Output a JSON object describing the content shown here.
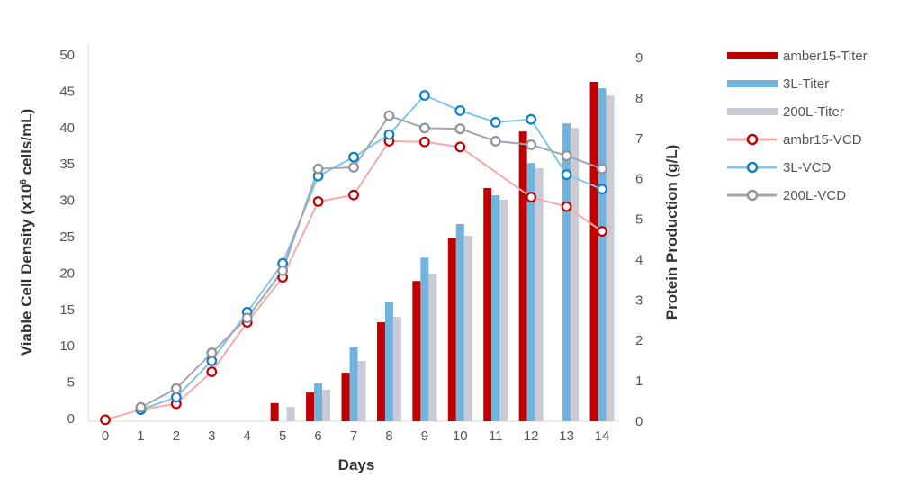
{
  "chart_data": {
    "type": "bar+line",
    "xlabel": "Days",
    "ylabel_left": "Viable Cell Density (x10",
    "ylabel_left_sup": "6",
    "ylabel_left_tail": " cells/mL)",
    "ylabel_right": "Protein Production (g/L)",
    "x": [
      0,
      1,
      2,
      3,
      4,
      5,
      6,
      7,
      8,
      9,
      10,
      11,
      12,
      13,
      14
    ],
    "ylim_left": [
      0,
      50
    ],
    "yticks_left": [
      0,
      5,
      10,
      15,
      20,
      25,
      30,
      35,
      40,
      45,
      50
    ],
    "ylim_right": [
      0,
      9
    ],
    "yticks_right": [
      0,
      1,
      2,
      3,
      4,
      5,
      6,
      7,
      8,
      9
    ],
    "grid": false,
    "legend_position": "right",
    "bar_series": [
      {
        "name": "amber15-Titer",
        "color": "#c00000",
        "values": [
          null,
          null,
          null,
          null,
          null,
          0.45,
          0.71,
          1.2,
          2.45,
          3.47,
          4.54,
          5.77,
          7.17,
          null,
          8.4
        ]
      },
      {
        "name": "3L-Titer",
        "color": "#6fb3de",
        "values": [
          null,
          null,
          null,
          null,
          null,
          null,
          0.94,
          1.83,
          2.94,
          4.05,
          4.88,
          5.59,
          6.39,
          7.37,
          8.24
        ]
      },
      {
        "name": "200L-Titer",
        "color": "#c9ccd4",
        "values": [
          null,
          null,
          null,
          null,
          null,
          0.36,
          0.78,
          1.49,
          2.58,
          3.65,
          4.59,
          5.48,
          6.26,
          7.26,
          8.06
        ]
      }
    ],
    "line_series": [
      {
        "name": "ambr15-VCD",
        "line_color": "#f7aaaa",
        "marker_color": "#c00000",
        "values": [
          0.2,
          1.6,
          2.4,
          6.8,
          13.6,
          19.8,
          30.2,
          31.1,
          38.5,
          38.4,
          37.7,
          null,
          30.8,
          29.5,
          26.1
        ]
      },
      {
        "name": "3L-VCD",
        "line_color": "#80c6ea",
        "marker_color": "#0b80c8",
        "values": [
          null,
          1.6,
          3.3,
          8.3,
          15.0,
          21.7,
          33.7,
          36.3,
          39.4,
          44.8,
          42.7,
          41.1,
          41.5,
          33.9,
          31.9
        ]
      },
      {
        "name": "200L-VCD",
        "line_color": "#a2a6b0",
        "marker_color": "#8f939b",
        "values": [
          null,
          1.9,
          4.5,
          9.4,
          14.2,
          20.7,
          34.7,
          34.9,
          42.0,
          40.3,
          40.2,
          38.5,
          38.0,
          36.5,
          34.7
        ]
      }
    ]
  }
}
